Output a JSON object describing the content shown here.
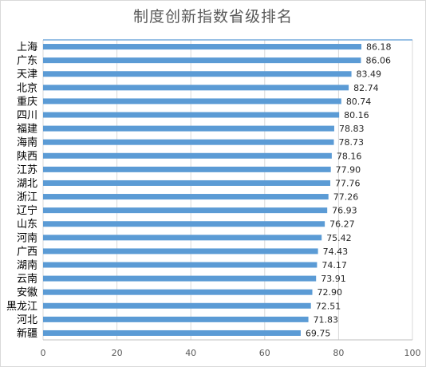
{
  "chart_data": {
    "type": "bar",
    "orientation": "horizontal",
    "title": "制度创新指数省级排名",
    "categories": [
      "上海",
      "广东",
      "天津",
      "北京",
      "重庆",
      "四川",
      "福建",
      "海南",
      "陕西",
      "江苏",
      "湖北",
      "浙江",
      "辽宁",
      "山东",
      "河南",
      "广西",
      "湖南",
      "云南",
      "安徽",
      "黑龙江",
      "河北",
      "新疆"
    ],
    "values": [
      86.18,
      86.06,
      83.49,
      82.74,
      80.74,
      80.16,
      78.83,
      78.73,
      78.16,
      77.9,
      77.76,
      77.26,
      76.93,
      76.27,
      75.42,
      74.43,
      74.17,
      73.91,
      72.9,
      72.51,
      71.83,
      69.75
    ],
    "value_labels": [
      "86.18",
      "86.06",
      "83.49",
      "82.74",
      "80.74",
      "80.16",
      "78.83",
      "78.73",
      "78.16",
      "77.90",
      "77.76",
      "77.26",
      "76.93",
      "76.27",
      "75.42",
      "74.43",
      "74.17",
      "73.91",
      "72.90",
      "72.51",
      "71.83",
      "69.75"
    ],
    "x_ticks": [
      "0",
      "20",
      "40",
      "60",
      "80",
      "100"
    ],
    "xlim": [
      0,
      100
    ],
    "xlabel": "",
    "ylabel": "",
    "grid": "vertical",
    "legend": "none",
    "colors": {
      "bar": "#5b9bd5",
      "grid": "#d9d9d9",
      "border": "#bfbfbf",
      "accent_line": "#5b9bd5"
    }
  }
}
